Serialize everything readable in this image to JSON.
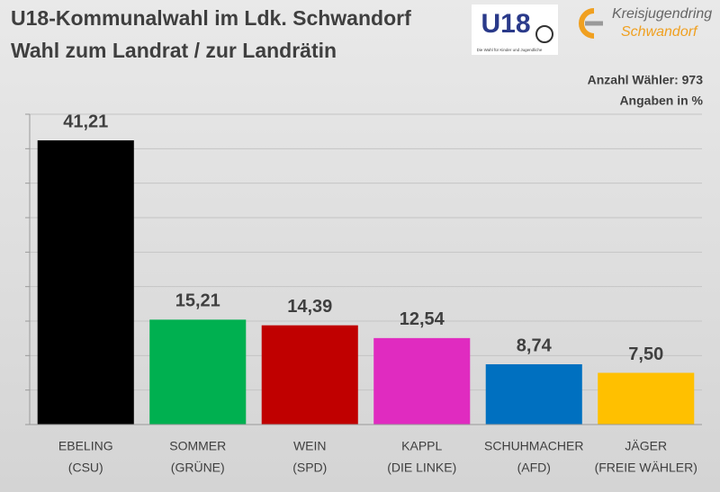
{
  "chart_data": {
    "type": "bar",
    "title": "U18-Kommunalwahl im Ldk. Schwandorf",
    "subtitle": "Wahl zum Landrat / zur Landrätin",
    "logos": {
      "u18": "U18",
      "u18_caption": "Die Wahl für Kinder und Jugendliche",
      "kjr_line1": "Kreisjugendring",
      "kjr_line2": "Schwandorf"
    },
    "annotations": [
      "Anzahl Wähler: 973",
      "Angaben in %"
    ],
    "categories": [
      [
        "EBELING",
        "(CSU)"
      ],
      [
        "SOMMER",
        "(GRÜNE)"
      ],
      [
        "WEIN",
        "(SPD)"
      ],
      [
        "KAPPL",
        "(DIE LINKE)"
      ],
      [
        "SCHUHMACHER",
        "(AFD)"
      ],
      [
        "JÄGER",
        "(FREIE WÄHLER)"
      ]
    ],
    "values": [
      41.21,
      15.21,
      14.39,
      12.54,
      8.74,
      7.5
    ],
    "value_labels": [
      "41,21",
      "15,21",
      "14,39",
      "12,54",
      "8,74",
      "7,50"
    ],
    "colors": [
      "#000000",
      "#00b050",
      "#c00000",
      "#e02bc0",
      "#0070c0",
      "#ffc000"
    ],
    "ylim": [
      0,
      45
    ],
    "yticks": [
      0,
      5,
      10,
      15,
      20,
      25,
      30,
      35,
      40,
      45
    ],
    "grid": true
  }
}
